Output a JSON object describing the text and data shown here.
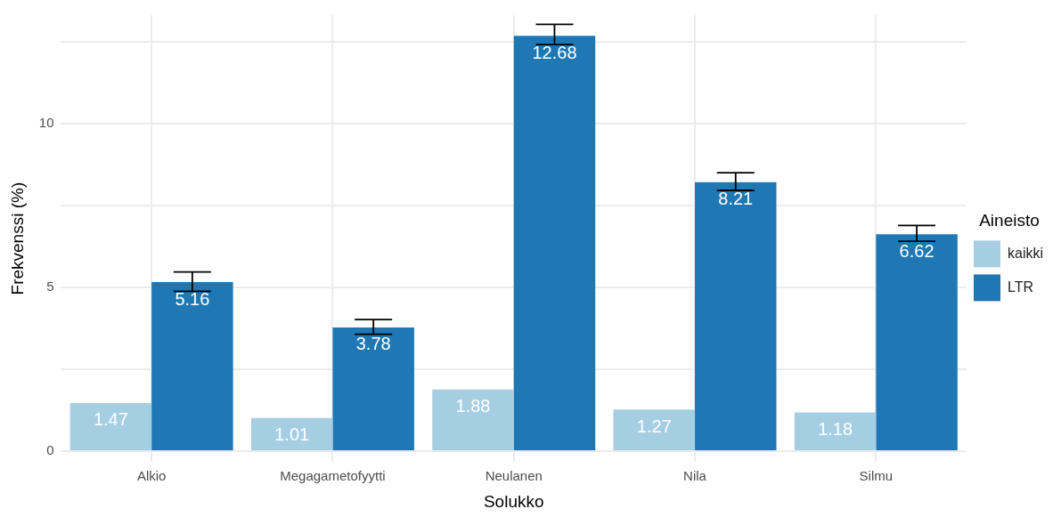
{
  "chart_data": {
    "type": "bar",
    "xlabel": "Solukko",
    "ylabel": "Frekvenssi (%)",
    "legend_title": "Aineisto",
    "legend": "right",
    "grid": true,
    "data_labels": true,
    "categories": [
      "Alkio",
      "Megagametofyytti",
      "Neulanen",
      "Nila",
      "Silmu"
    ],
    "ylim": [
      -0.33,
      13.31
    ],
    "yticks": [
      0,
      {
        "value": 2.5,
        "label": null
      },
      5,
      {
        "value": 7.5,
        "label": null
      },
      10,
      {
        "value": 12.5,
        "label": null
      }
    ],
    "series": [
      {
        "name": "kaikki",
        "color": "#a6cee3",
        "values": [
          1.47,
          1.01,
          1.88,
          1.27,
          1.18
        ]
      },
      {
        "name": "LTR",
        "color": "#1f78b4",
        "values": [
          5.16,
          3.78,
          12.68,
          8.21,
          6.62
        ],
        "errors": [
          [
            4.88,
            5.47
          ],
          [
            3.57,
            4.02
          ],
          [
            12.41,
            13.03
          ],
          [
            7.96,
            8.5
          ],
          [
            6.41,
            6.89
          ]
        ]
      }
    ]
  }
}
